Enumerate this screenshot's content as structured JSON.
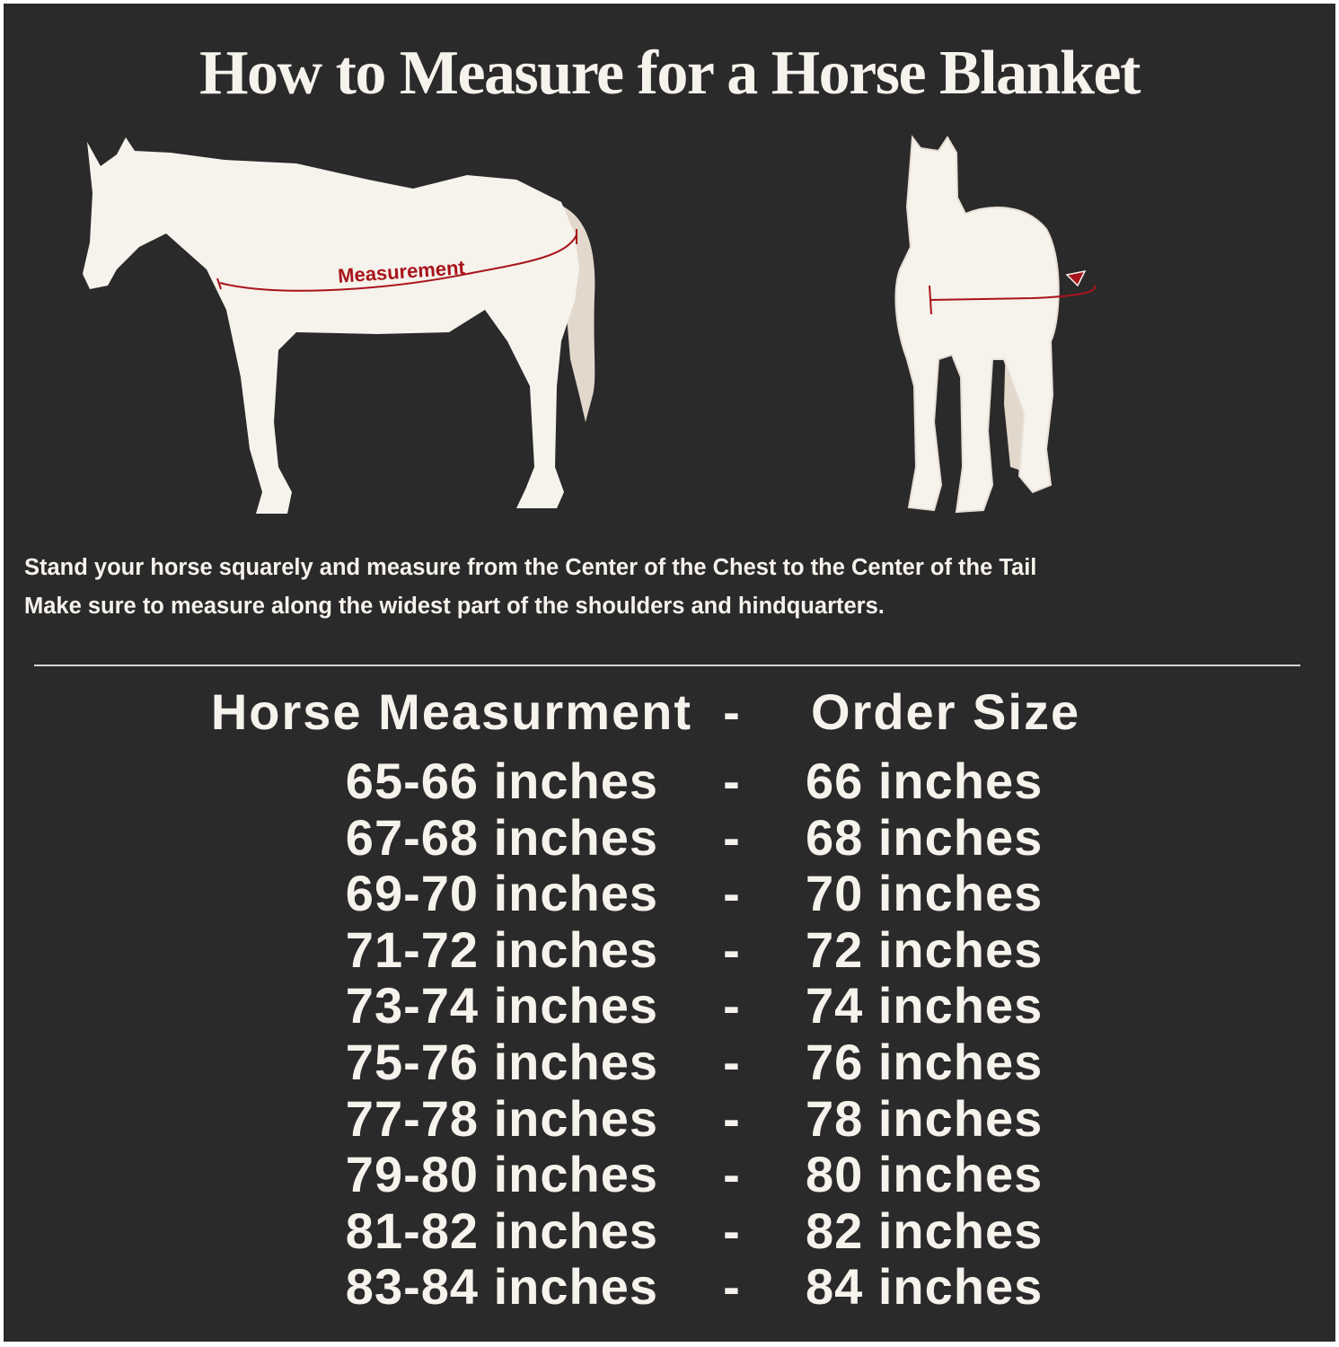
{
  "title": "How to Measure for a Horse Blanket",
  "illustration": {
    "side_label": "Measurement",
    "colors": {
      "background": "#2b2a2b",
      "horse": "#f6f2ec",
      "tail": "#e2d8cb",
      "measure_line": "#a8141c"
    }
  },
  "instructions": [
    "Stand your horse squarely and measure from the Center of the Chest to the Center of the Tail",
    "Make sure to measure along the widest part of the shoulders and hindquarters."
  ],
  "size_table": {
    "header": {
      "measurement": "Horse Measurment",
      "separator": "-",
      "size": "Order Size"
    },
    "rows": [
      {
        "measurement": "65-66 inches",
        "separator": "-",
        "size": "66 inches"
      },
      {
        "measurement": "67-68 inches",
        "separator": "-",
        "size": "68 inches"
      },
      {
        "measurement": "69-70 inches",
        "separator": "-",
        "size": "70 inches"
      },
      {
        "measurement": "71-72 inches",
        "separator": "-",
        "size": "72 inches"
      },
      {
        "measurement": "73-74 inches",
        "separator": "-",
        "size": "74 inches"
      },
      {
        "measurement": "75-76 inches",
        "separator": "-",
        "size": "76 inches"
      },
      {
        "measurement": "77-78 inches",
        "separator": "-",
        "size": "78 inches"
      },
      {
        "measurement": "79-80 inches",
        "separator": "-",
        "size": "80 inches"
      },
      {
        "measurement": "81-82 inches",
        "separator": "-",
        "size": "82 inches"
      },
      {
        "measurement": "83-84 inches",
        "separator": "-",
        "size": "84 inches"
      }
    ]
  }
}
